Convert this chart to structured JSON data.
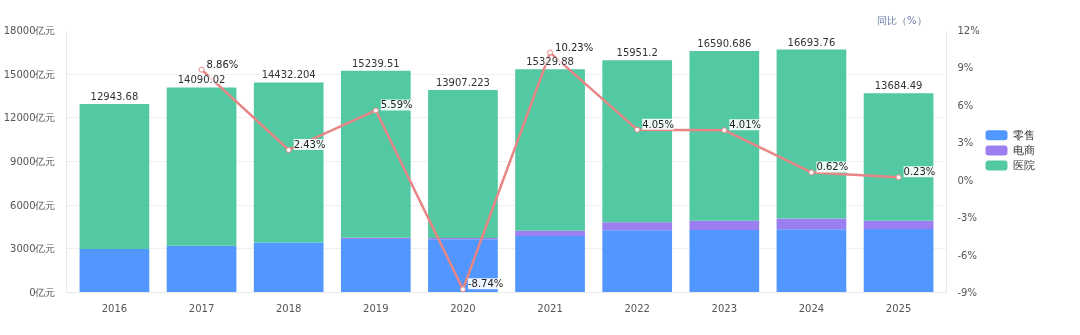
{
  "chart_data": {
    "type": "bar",
    "stacked": true,
    "y2label": "同比（%）",
    "categories": [
      "2016",
      "2017",
      "2018",
      "2019",
      "2020",
      "2021",
      "2022",
      "2023",
      "2024",
      "2025"
    ],
    "series": [
      {
        "name": "零售",
        "color": "#5197ff",
        "values": [
          2990,
          3220,
          3440,
          3670,
          3650,
          3890,
          4280,
          4300,
          4340,
          4370
        ]
      },
      {
        "name": "电商",
        "color": "#9b7ef0",
        "values": [
          0,
          0,
          0,
          90,
          90,
          360,
          540,
          630,
          750,
          560
        ]
      },
      {
        "name": "医院",
        "color": "#52c9a2",
        "values": [
          9953.68,
          10870.02,
          10992.204,
          11479.51,
          10167.223,
          11079.88,
          11131.2,
          11660.686,
          11603.76,
          8754.49
        ]
      },
      {
        "type": "line",
        "axis": "y2",
        "color": "#e88585",
        "marker": "circle",
        "values": [
          null,
          8.86,
          2.43,
          5.59,
          -8.74,
          10.23,
          4.05,
          4.01,
          0.62,
          0.23
        ],
        "value_labels": [
          null,
          "8.86%",
          "2.43%",
          "5.59%",
          "-8.74%",
          "10.23%",
          "4.05%",
          "4.01%",
          "0.62%",
          "0.23%"
        ]
      }
    ],
    "totals": [
      "12943.68",
      "14090.02",
      "14432.204",
      "15239.51",
      "13907.223",
      "15329.88",
      "15951.2",
      "16590.686",
      "16693.76",
      "13684.49"
    ],
    "ylim": [
      0,
      18000
    ],
    "yticks": [
      {
        "value": 0,
        "label": "0亿元"
      },
      {
        "value": 3000,
        "label": "3000亿元"
      },
      {
        "value": 6000,
        "label": "6000亿元"
      },
      {
        "value": 9000,
        "label": "9000亿元"
      },
      {
        "value": 12000,
        "label": "12000亿元"
      },
      {
        "value": 15000,
        "label": "15000亿元"
      },
      {
        "value": 18000,
        "label": "18000亿元"
      }
    ],
    "y2lim": [
      -9,
      12
    ],
    "y2ticks": [
      {
        "value": -9,
        "label": "-9%"
      },
      {
        "value": -6,
        "label": "-6%"
      },
      {
        "value": -3,
        "label": "-3%"
      },
      {
        "value": 0,
        "label": "0%"
      },
      {
        "value": 3,
        "label": "3%"
      },
      {
        "value": 6,
        "label": "6%"
      },
      {
        "value": 9,
        "label": "9%"
      },
      {
        "value": 12,
        "label": "12%"
      }
    ],
    "grid": "y",
    "legend": "right"
  }
}
